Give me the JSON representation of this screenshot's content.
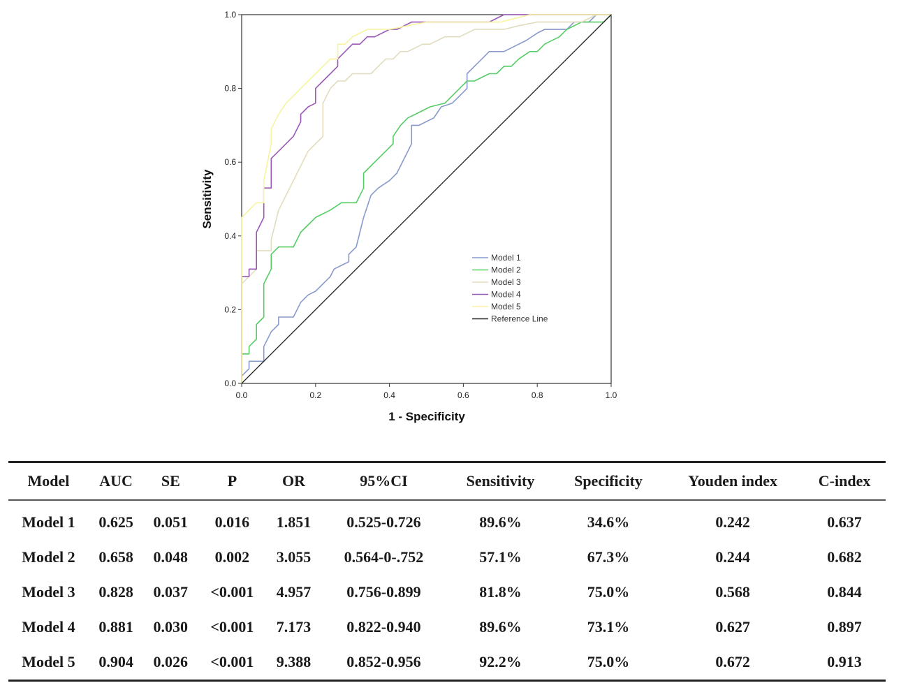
{
  "chart_data": {
    "type": "line",
    "title": "",
    "xlabel": "1 - Specificity",
    "ylabel": "Sensitivity",
    "xlim": [
      0,
      1
    ],
    "ylim": [
      0,
      1
    ],
    "ticks": [
      "0.0",
      "0.2",
      "0.4",
      "0.6",
      "0.8",
      "1.0"
    ],
    "tick_values": [
      0,
      0.2,
      0.4,
      0.6,
      0.8,
      1.0
    ],
    "legend_position": "bottom-right inside",
    "series": [
      {
        "name": "Model 1",
        "color": "#8899cc",
        "x": [
          0,
          0,
          0.02,
          0.02,
          0.04,
          0.06,
          0.06,
          0.08,
          0.1,
          0.1,
          0.14,
          0.16,
          0.18,
          0.2,
          0.22,
          0.24,
          0.25,
          0.27,
          0.29,
          0.29,
          0.31,
          0.32,
          0.33,
          0.35,
          0.37,
          0.4,
          0.42,
          0.44,
          0.46,
          0.46,
          0.48,
          0.52,
          0.54,
          0.57,
          0.59,
          0.61,
          0.61,
          0.63,
          0.65,
          0.67,
          0.71,
          0.75,
          0.77,
          0.8,
          0.82,
          0.86,
          0.88,
          0.9,
          0.92,
          0.94,
          0.96,
          1.0
        ],
        "y": [
          0,
          0.02,
          0.04,
          0.06,
          0.06,
          0.06,
          0.1,
          0.14,
          0.16,
          0.18,
          0.18,
          0.22,
          0.24,
          0.25,
          0.27,
          0.29,
          0.31,
          0.32,
          0.33,
          0.35,
          0.37,
          0.41,
          0.45,
          0.51,
          0.53,
          0.55,
          0.57,
          0.61,
          0.65,
          0.7,
          0.7,
          0.72,
          0.75,
          0.76,
          0.78,
          0.8,
          0.84,
          0.86,
          0.88,
          0.9,
          0.9,
          0.92,
          0.93,
          0.95,
          0.96,
          0.96,
          0.96,
          0.98,
          0.98,
          0.98,
          1.0,
          1.0
        ]
      },
      {
        "name": "Model 2",
        "color": "#55cc66",
        "x": [
          0,
          0,
          0.02,
          0.02,
          0.04,
          0.04,
          0.06,
          0.06,
          0.08,
          0.08,
          0.1,
          0.1,
          0.14,
          0.16,
          0.18,
          0.2,
          0.24,
          0.27,
          0.31,
          0.33,
          0.33,
          0.35,
          0.37,
          0.39,
          0.41,
          0.41,
          0.43,
          0.45,
          0.47,
          0.51,
          0.55,
          0.57,
          0.59,
          0.61,
          0.63,
          0.67,
          0.69,
          0.71,
          0.73,
          0.75,
          0.78,
          0.8,
          0.82,
          0.86,
          0.88,
          0.92,
          0.94,
          0.96,
          0.98,
          1.0
        ],
        "y": [
          0,
          0.08,
          0.08,
          0.1,
          0.12,
          0.16,
          0.18,
          0.27,
          0.31,
          0.35,
          0.37,
          0.37,
          0.37,
          0.41,
          0.43,
          0.45,
          0.47,
          0.49,
          0.49,
          0.53,
          0.57,
          0.59,
          0.61,
          0.63,
          0.65,
          0.67,
          0.7,
          0.72,
          0.73,
          0.75,
          0.76,
          0.78,
          0.8,
          0.82,
          0.82,
          0.84,
          0.84,
          0.86,
          0.86,
          0.88,
          0.9,
          0.9,
          0.92,
          0.94,
          0.96,
          0.98,
          0.98,
          0.98,
          0.98,
          1.0
        ]
      },
      {
        "name": "Model 3",
        "color": "#e2dcbe",
        "x": [
          0,
          0,
          0.02,
          0.04,
          0.04,
          0.06,
          0.08,
          0.08,
          0.1,
          0.12,
          0.14,
          0.16,
          0.18,
          0.2,
          0.22,
          0.22,
          0.24,
          0.26,
          0.28,
          0.3,
          0.32,
          0.35,
          0.37,
          0.39,
          0.41,
          0.43,
          0.45,
          0.47,
          0.49,
          0.51,
          0.55,
          0.59,
          0.63,
          0.67,
          0.71,
          0.75,
          0.8,
          0.84,
          0.88,
          0.92,
          0.96,
          1.0
        ],
        "y": [
          0,
          0.27,
          0.29,
          0.31,
          0.36,
          0.36,
          0.36,
          0.39,
          0.47,
          0.51,
          0.55,
          0.59,
          0.63,
          0.65,
          0.67,
          0.76,
          0.8,
          0.82,
          0.82,
          0.84,
          0.84,
          0.84,
          0.86,
          0.88,
          0.88,
          0.9,
          0.9,
          0.91,
          0.92,
          0.92,
          0.94,
          0.94,
          0.96,
          0.96,
          0.96,
          0.97,
          0.98,
          0.98,
          0.98,
          0.98,
          1.0,
          1.0
        ]
      },
      {
        "name": "Model 4",
        "color": "#9b59b6",
        "x": [
          0,
          0,
          0.02,
          0.02,
          0.04,
          0.04,
          0.06,
          0.06,
          0.08,
          0.08,
          0.1,
          0.12,
          0.14,
          0.16,
          0.16,
          0.18,
          0.2,
          0.2,
          0.22,
          0.24,
          0.26,
          0.26,
          0.28,
          0.3,
          0.32,
          0.34,
          0.36,
          0.4,
          0.42,
          0.46,
          0.5,
          0.55,
          0.59,
          0.63,
          0.67,
          0.71,
          0.75,
          0.8,
          1.0
        ],
        "y": [
          0,
          0.29,
          0.29,
          0.31,
          0.31,
          0.41,
          0.45,
          0.53,
          0.53,
          0.61,
          0.63,
          0.65,
          0.67,
          0.71,
          0.73,
          0.75,
          0.76,
          0.8,
          0.82,
          0.84,
          0.86,
          0.88,
          0.9,
          0.92,
          0.92,
          0.94,
          0.94,
          0.96,
          0.96,
          0.98,
          0.98,
          0.98,
          0.98,
          0.98,
          0.98,
          1.0,
          1.0,
          1.0,
          1.0
        ]
      },
      {
        "name": "Model 5",
        "color": "#f7f4a0",
        "x": [
          0,
          0,
          0.02,
          0.04,
          0.06,
          0.06,
          0.08,
          0.08,
          0.1,
          0.12,
          0.14,
          0.16,
          0.18,
          0.2,
          0.22,
          0.24,
          0.26,
          0.26,
          0.28,
          0.3,
          0.32,
          0.34,
          0.36,
          0.4,
          0.45,
          0.5,
          0.55,
          0.6,
          0.65,
          0.7,
          0.74,
          0.78,
          0.82,
          0.86,
          0.9,
          1.0
        ],
        "y": [
          0,
          0.45,
          0.47,
          0.49,
          0.49,
          0.55,
          0.65,
          0.69,
          0.73,
          0.76,
          0.78,
          0.8,
          0.82,
          0.84,
          0.86,
          0.88,
          0.88,
          0.92,
          0.92,
          0.94,
          0.95,
          0.96,
          0.96,
          0.96,
          0.97,
          0.98,
          0.98,
          0.98,
          0.98,
          0.98,
          0.99,
          1.0,
          1.0,
          1.0,
          1.0,
          1.0
        ]
      },
      {
        "name": "Reference Line",
        "color": "#222222",
        "x": [
          0,
          1
        ],
        "y": [
          0,
          1
        ]
      }
    ]
  },
  "table": {
    "headers": [
      "Model",
      "AUC",
      "SE",
      "P",
      "OR",
      "95%CI",
      "Sensitivity",
      "Specificity",
      "Youden index",
      "C-index"
    ],
    "rows": [
      [
        "Model 1",
        "0.625",
        "0.051",
        "0.016",
        "1.851",
        "0.525-0.726",
        "89.6%",
        "34.6%",
        "0.242",
        "0.637"
      ],
      [
        "Model 2",
        "0.658",
        "0.048",
        "0.002",
        "3.055",
        "0.564-0-.752",
        "57.1%",
        "67.3%",
        "0.244",
        "0.682"
      ],
      [
        "Model 3",
        "0.828",
        "0.037",
        "<0.001",
        "4.957",
        "0.756-0.899",
        "81.8%",
        "75.0%",
        "0.568",
        "0.844"
      ],
      [
        "Model 4",
        "0.881",
        "0.030",
        "<0.001",
        "7.173",
        "0.822-0.940",
        "89.6%",
        "73.1%",
        "0.627",
        "0.897"
      ],
      [
        "Model 5",
        "0.904",
        "0.026",
        "<0.001",
        "9.388",
        "0.852-0.956",
        "92.2%",
        "75.0%",
        "0.672",
        "0.913"
      ]
    ]
  }
}
